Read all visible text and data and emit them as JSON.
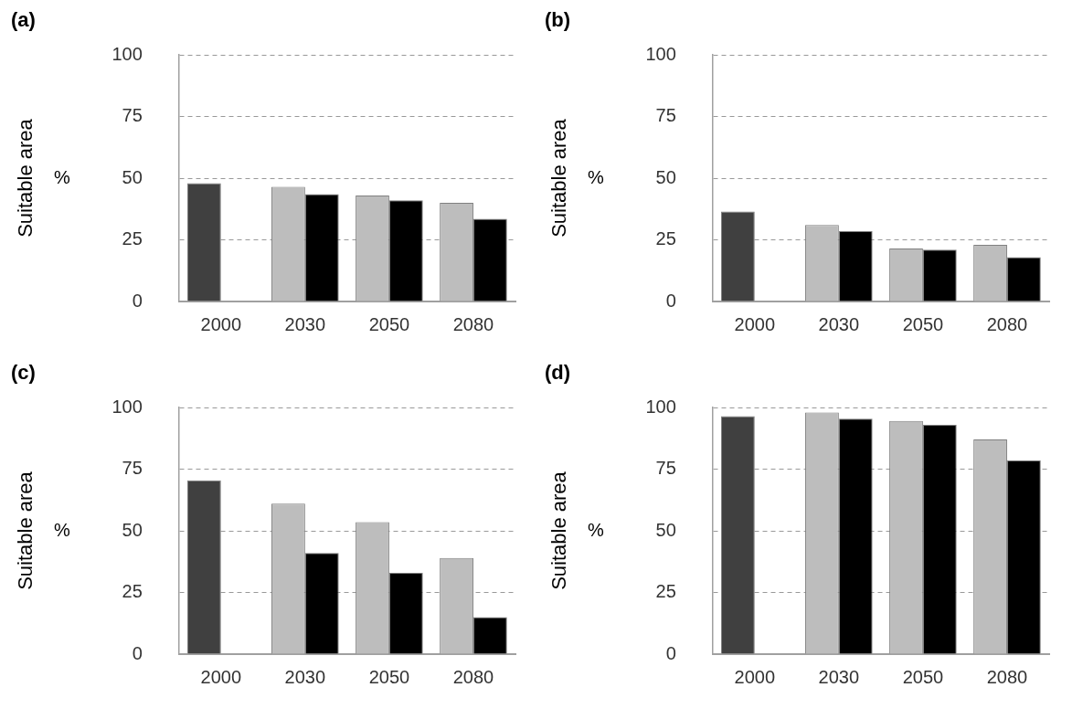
{
  "chart_data": [
    {
      "type": "bar",
      "title": "(a)",
      "ylabel": "Suitable area",
      "annotations": [
        "%"
      ],
      "categories": [
        "2000",
        "2030",
        "2050",
        "2080"
      ],
      "series": [
        {
          "colors": [
            "#404040",
            "#bdbdbd",
            "#bdbdbd",
            "#bdbdbd"
          ],
          "values": [
            48,
            46.5,
            43,
            40
          ]
        },
        {
          "color": "#000000",
          "values": [
            null,
            43.5,
            41,
            33.5
          ]
        }
      ],
      "ylim": [
        0,
        100
      ],
      "yticks": [
        0,
        25,
        50,
        75,
        100
      ],
      "grid": "y",
      "legend": false
    },
    {
      "type": "bar",
      "title": "(b)",
      "ylabel": "Suitable area",
      "annotations": [
        "%"
      ],
      "categories": [
        "2000",
        "2030",
        "2050",
        "2080"
      ],
      "series": [
        {
          "colors": [
            "#404040",
            "#bdbdbd",
            "#bdbdbd",
            "#bdbdbd"
          ],
          "values": [
            36.5,
            31,
            21.5,
            23
          ]
        },
        {
          "color": "#000000",
          "values": [
            null,
            28.5,
            21,
            18
          ]
        }
      ],
      "ylim": [
        0,
        100
      ],
      "yticks": [
        0,
        25,
        50,
        75,
        100
      ],
      "grid": "y",
      "legend": false
    },
    {
      "type": "bar",
      "title": "(c)",
      "ylabel": "Suitable area",
      "annotations": [
        "%"
      ],
      "categories": [
        "2000",
        "2030",
        "2050",
        "2080"
      ],
      "series": [
        {
          "colors": [
            "#404040",
            "#bdbdbd",
            "#bdbdbd",
            "#bdbdbd"
          ],
          "values": [
            70.5,
            61,
            53.5,
            39
          ]
        },
        {
          "color": "#000000",
          "values": [
            null,
            41,
            33,
            15
          ]
        }
      ],
      "ylim": [
        0,
        100
      ],
      "yticks": [
        0,
        25,
        50,
        75,
        100
      ],
      "grid": "y",
      "legend": false
    },
    {
      "type": "bar",
      "title": "(d)",
      "ylabel": "Suitable area",
      "annotations": [
        "%"
      ],
      "categories": [
        "2000",
        "2030",
        "2050",
        "2080"
      ],
      "series": [
        {
          "colors": [
            "#404040",
            "#bdbdbd",
            "#bdbdbd",
            "#bdbdbd"
          ],
          "values": [
            96.5,
            98,
            94.5,
            87
          ]
        },
        {
          "color": "#000000",
          "values": [
            null,
            95.5,
            93,
            78.5
          ]
        }
      ],
      "ylim": [
        0,
        100
      ],
      "yticks": [
        0,
        25,
        50,
        75,
        100
      ],
      "grid": "y",
      "legend": false
    }
  ]
}
